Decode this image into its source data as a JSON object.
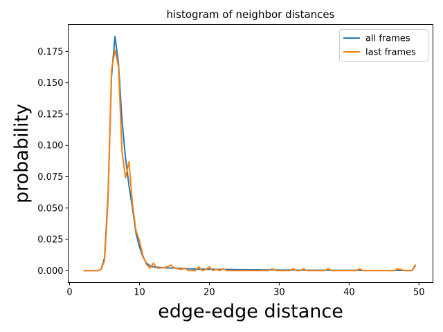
{
  "chart_data": {
    "type": "line",
    "title": "histogram of neighbor distances",
    "xlabel": "edge-edge distance",
    "ylabel": "probability",
    "xlim": [
      -0.2,
      52
    ],
    "ylim": [
      -0.0095,
      0.1965
    ],
    "xticks": [
      0,
      10,
      20,
      30,
      40,
      50
    ],
    "xtick_labels": [
      "0",
      "10",
      "20",
      "30",
      "40",
      "50"
    ],
    "yticks": [
      0.0,
      0.025,
      0.05,
      0.075,
      0.1,
      0.125,
      0.15,
      0.175
    ],
    "ytick_labels": [
      "0.000",
      "0.025",
      "0.050",
      "0.075",
      "0.100",
      "0.125",
      "0.150",
      "0.175"
    ],
    "legend_position": "top-right",
    "grid": false,
    "series": [
      {
        "name": "all frames",
        "color": "#1f77b4",
        "x": [
          2,
          3,
          4,
          4.5,
          5,
          5.5,
          6,
          6.5,
          7,
          7.5,
          8,
          8.5,
          9,
          9.5,
          10,
          10.5,
          11,
          11.5,
          12,
          13,
          14,
          15,
          16,
          17,
          18,
          19,
          20,
          21,
          22,
          23,
          24,
          25,
          26,
          27,
          28,
          29,
          30,
          31,
          32,
          33,
          34,
          35,
          36,
          37,
          38,
          39,
          40,
          41,
          42,
          43,
          44,
          45,
          46,
          47,
          48,
          49,
          49.5
        ],
        "y": [
          0.0,
          0.0,
          0.0,
          0.001,
          0.01,
          0.06,
          0.155,
          0.187,
          0.165,
          0.12,
          0.09,
          0.068,
          0.05,
          0.03,
          0.019,
          0.011,
          0.006,
          0.004,
          0.003,
          0.0025,
          0.0022,
          0.002,
          0.0018,
          0.0015,
          0.0013,
          0.0012,
          0.0011,
          0.001,
          0.001,
          0.0009,
          0.0008,
          0.0008,
          0.0007,
          0.0007,
          0.0006,
          0.0006,
          0.0005,
          0.0005,
          0.0005,
          0.0004,
          0.0004,
          0.0004,
          0.0004,
          0.0003,
          0.0003,
          0.0003,
          0.0003,
          0.0003,
          0.0002,
          0.0002,
          0.0002,
          0.0002,
          0.0002,
          0.0002,
          0.0002,
          0.0002,
          0.004
        ]
      },
      {
        "name": "last frames",
        "color": "#ff7f0e",
        "x": [
          2,
          3,
          4,
          4.5,
          5,
          5.5,
          6,
          6.5,
          7,
          7.5,
          8,
          8.5,
          9,
          9.5,
          10,
          10.5,
          11,
          11.5,
          12,
          12.5,
          13,
          14,
          14.5,
          15,
          16,
          16.5,
          17,
          18,
          18.5,
          19,
          19.5,
          20,
          20.5,
          21,
          21.5,
          22,
          22.5,
          23,
          24,
          25,
          26,
          27,
          28,
          28.5,
          29,
          29.5,
          30,
          31,
          31.5,
          32,
          32.5,
          33,
          33.5,
          34,
          35,
          36,
          36.5,
          37,
          37.5,
          38,
          39,
          40,
          41,
          41.5,
          42,
          43,
          44,
          45,
          46,
          46.5,
          47,
          48,
          49,
          49.5
        ],
        "y": [
          0.0,
          0.0,
          0.0,
          0.001,
          0.008,
          0.055,
          0.16,
          0.176,
          0.163,
          0.095,
          0.074,
          0.087,
          0.053,
          0.032,
          0.024,
          0.012,
          0.005,
          0.002,
          0.006,
          0.002,
          0.002,
          0.003,
          0.0045,
          0.002,
          0.001,
          0.002,
          0.0,
          0.0,
          0.003,
          0.0,
          0.001,
          0.003,
          0.0,
          0.001,
          0.0,
          0.0015,
          0.0,
          0.0,
          0.0,
          0.0,
          0.0,
          0.0,
          0.0,
          0.0,
          0.0015,
          0.0,
          0.0,
          0.0,
          0.0,
          0.0015,
          0.0,
          0.0,
          0.0015,
          0.0,
          0.0,
          0.0,
          0.0,
          0.0015,
          0.0,
          0.0,
          0.0,
          0.0,
          0.0,
          0.0015,
          0.0,
          0.0,
          0.0,
          0.0,
          0.0,
          0.0,
          0.0015,
          0.0,
          0.0,
          0.005
        ]
      }
    ]
  }
}
